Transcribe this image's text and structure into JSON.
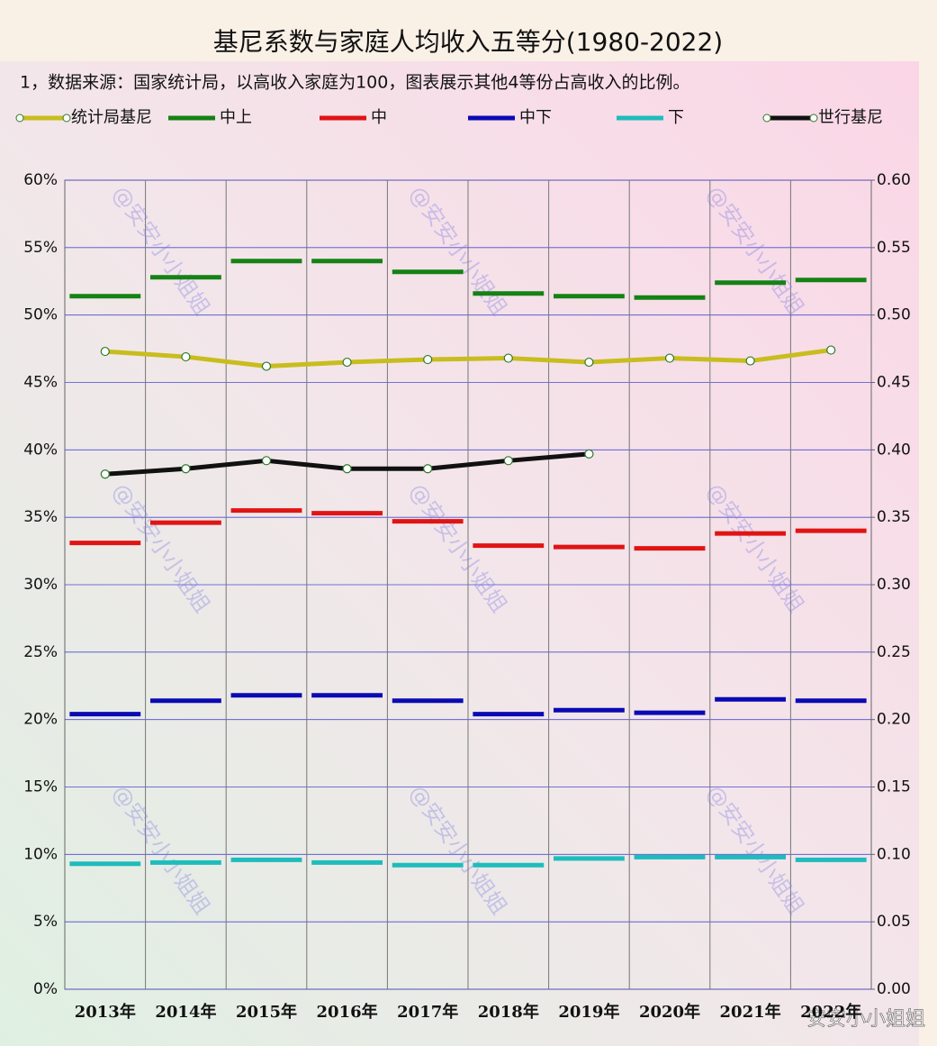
{
  "chart_data": {
    "type": "line",
    "title": "基尼系数与家庭人均收入五等分(1980-2022)",
    "subtitle": "1，数据来源：国家统计局，以高收入家庭为100，图表展示其他4等份占高收入的比例。",
    "watermark": "@安安小小姐姐",
    "credit": "安安小小姐姐",
    "categories": [
      "2013年",
      "2014年",
      "2015年",
      "2016年",
      "2017年",
      "2018年",
      "2019年",
      "2020年",
      "2021年",
      "2022年"
    ],
    "ylim": [
      0,
      60
    ],
    "yticks": [
      {
        "value": 0,
        "label": "0%"
      },
      {
        "value": 5,
        "label": "5%"
      },
      {
        "value": 10,
        "label": "10%"
      },
      {
        "value": 15,
        "label": "15%"
      },
      {
        "value": 20,
        "label": "20%"
      },
      {
        "value": 25,
        "label": "25%"
      },
      {
        "value": 30,
        "label": "30%"
      },
      {
        "value": 35,
        "label": "35%"
      },
      {
        "value": 40,
        "label": "40%"
      },
      {
        "value": 45,
        "label": "45%"
      },
      {
        "value": 50,
        "label": "50%"
      },
      {
        "value": 55,
        "label": "55%"
      },
      {
        "value": 60,
        "label": "60%"
      }
    ],
    "y2lim": [
      0,
      0.6
    ],
    "y2ticks": [
      {
        "value": 0,
        "label": "0.00"
      },
      {
        "value": 0.05,
        "label": "0.05"
      },
      {
        "value": 0.1,
        "label": "0.10"
      },
      {
        "value": 0.15,
        "label": "0.15"
      },
      {
        "value": 0.2,
        "label": "0.20"
      },
      {
        "value": 0.25,
        "label": "0.25"
      },
      {
        "value": 0.3,
        "label": "0.30"
      },
      {
        "value": 0.35,
        "label": "0.35"
      },
      {
        "value": 0.4,
        "label": "0.40"
      },
      {
        "value": 0.45,
        "label": "0.45"
      },
      {
        "value": 0.5,
        "label": "0.50"
      },
      {
        "value": 0.55,
        "label": "0.55"
      },
      {
        "value": 0.6,
        "label": "0.60"
      }
    ],
    "grid": true,
    "legend": "top",
    "series": [
      {
        "name": "统计局基尼",
        "color": "#c8bd1e",
        "style": "line",
        "axis": "y2",
        "values": [
          0.473,
          0.469,
          0.462,
          0.465,
          0.467,
          0.468,
          0.465,
          0.468,
          0.466,
          0.474
        ]
      },
      {
        "name": "中上",
        "color": "#148214",
        "style": "segment",
        "values": [
          51.4,
          52.8,
          54.0,
          54.0,
          53.2,
          51.6,
          51.4,
          51.3,
          52.4,
          52.6
        ]
      },
      {
        "name": "中",
        "color": "#e01414",
        "style": "segment",
        "values": [
          33.1,
          34.6,
          35.5,
          35.3,
          34.7,
          32.9,
          32.8,
          32.7,
          33.8,
          34.0
        ]
      },
      {
        "name": "中下",
        "color": "#0a0ab4",
        "style": "segment",
        "values": [
          20.4,
          21.4,
          21.8,
          21.8,
          21.4,
          20.4,
          20.7,
          20.5,
          21.5,
          21.4
        ]
      },
      {
        "name": "下",
        "color": "#1ebcbc",
        "style": "segment",
        "values": [
          9.3,
          9.4,
          9.6,
          9.4,
          9.2,
          9.2,
          9.7,
          9.8,
          9.8,
          9.6
        ]
      },
      {
        "name": "世行基尼",
        "color": "#111111",
        "style": "line",
        "axis": "y2",
        "values": [
          0.382,
          0.386,
          0.392,
          0.386,
          0.386,
          0.392,
          0.397,
          null,
          null,
          null
        ]
      }
    ]
  }
}
